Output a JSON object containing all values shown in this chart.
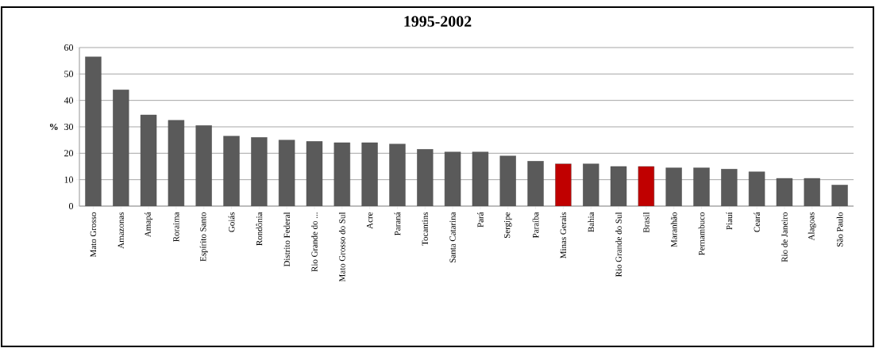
{
  "chart_data": {
    "type": "bar",
    "title": "1995-2002",
    "ylabel": "%",
    "categories": [
      "Mato Grosso",
      "Amazonas",
      "Amapá",
      "Roraima",
      "Espírito Santo",
      "Goiás",
      "Rondônia",
      "Distrito Federal",
      "Rio Grande do ...",
      "Mato Grosso do Sul",
      "Acre",
      "Paraná",
      "Tocantins",
      "Santa Catarina",
      "Pará",
      "Sergipe",
      "Paraíba",
      "Minas Gerais",
      "Bahia",
      "Rio Grande do Sul",
      "Brasil",
      "Maranhão",
      "Pernambuco",
      "Piauí",
      "Ceará",
      "Rio de Janeiro",
      "Alagoas",
      "São Paulo"
    ],
    "values": [
      56.5,
      44,
      34.5,
      32.5,
      30.5,
      26.5,
      26,
      25,
      24.5,
      24,
      24,
      23.5,
      21.5,
      20.5,
      20.5,
      19,
      17,
      16,
      16,
      15,
      15,
      14.5,
      14.5,
      14,
      13,
      10.5,
      10.5,
      8
    ],
    "colors": [
      "#5a5a5a",
      "#5a5a5a",
      "#5a5a5a",
      "#5a5a5a",
      "#5a5a5a",
      "#5a5a5a",
      "#5a5a5a",
      "#5a5a5a",
      "#5a5a5a",
      "#5a5a5a",
      "#5a5a5a",
      "#5a5a5a",
      "#5a5a5a",
      "#5a5a5a",
      "#5a5a5a",
      "#5a5a5a",
      "#5a5a5a",
      "#c00000",
      "#5a5a5a",
      "#5a5a5a",
      "#c00000",
      "#5a5a5a",
      "#5a5a5a",
      "#5a5a5a",
      "#5a5a5a",
      "#5a5a5a",
      "#5a5a5a",
      "#5a5a5a"
    ],
    "ylim": [
      0,
      60
    ],
    "yticks": [
      0,
      10,
      20,
      30,
      40,
      50,
      60
    ],
    "grid": "y"
  }
}
